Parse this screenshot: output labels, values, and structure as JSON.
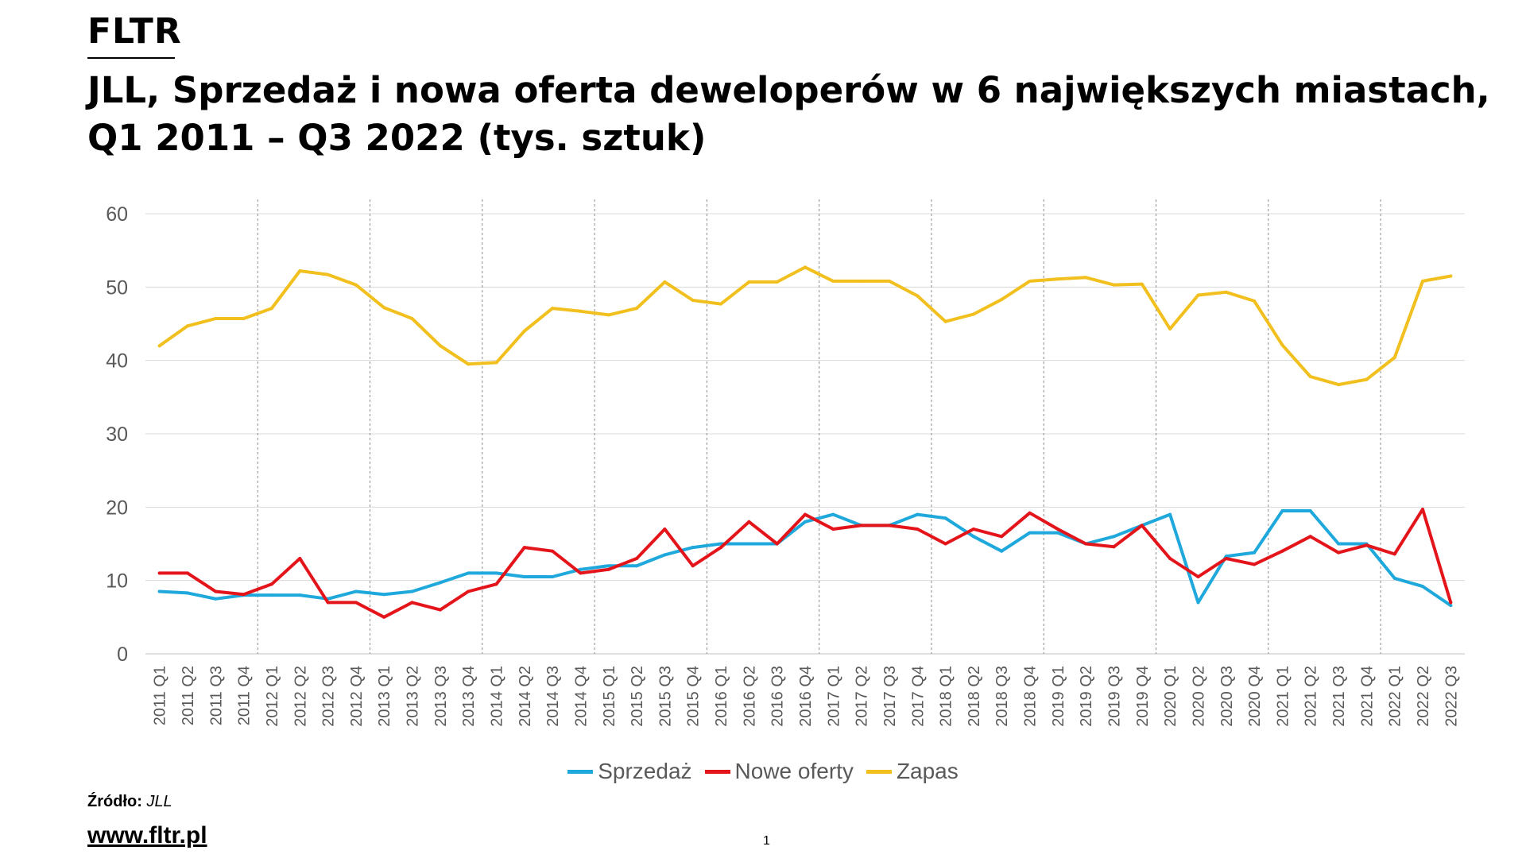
{
  "brand": "FLTR",
  "title_line1": "JLL, Sprzedaż i nowa oferta deweloperów  w 6 największych miastach,",
  "title_line2": "Q1 2011 – Q3 2022 (tys. sztuk)",
  "source_label": "Źródło:",
  "source_value": "JLL",
  "website": "www.fltr.pl",
  "page_number": "1",
  "colors": {
    "sprzedaz": "#1fa8dc",
    "nowe": "#e3151b",
    "zapas": "#f2c01e",
    "grid": "#d9d9d9",
    "tick": "#595959"
  },
  "chart_data": {
    "type": "line",
    "title": "JLL, Sprzedaż i nowa oferta deweloperów w 6 największych miastach, Q1 2011 – Q3 2022 (tys. sztuk)",
    "xlabel": "",
    "ylabel": "",
    "ylim": [
      0,
      60
    ],
    "yticks": [
      "0",
      "10",
      "20",
      "30",
      "40",
      "50",
      "60"
    ],
    "categories": [
      "2011 Q1",
      "2011 Q2",
      "2011 Q3",
      "2011 Q4",
      "2012 Q1",
      "2012 Q2",
      "2012 Q3",
      "2012 Q4",
      "2013 Q1",
      "2013 Q2",
      "2013 Q3",
      "2013 Q4",
      "2014 Q1",
      "2014 Q2",
      "2014 Q3",
      "2014 Q4",
      "2015 Q1",
      "2015 Q2",
      "2015 Q3",
      "2015 Q4",
      "2016 Q1",
      "2016 Q2",
      "2016 Q3",
      "2016 Q4",
      "2017 Q1",
      "2017 Q2",
      "2017 Q3",
      "2017 Q4",
      "2018 Q1",
      "2018 Q2",
      "2018 Q3",
      "2018 Q4",
      "2019 Q1",
      "2019 Q2",
      "2019 Q3",
      "2019 Q4",
      "2020 Q1",
      "2020 Q2",
      "2020 Q3",
      "2020 Q4",
      "2021 Q1",
      "2021 Q2",
      "2021 Q3",
      "2021 Q4",
      "2022 Q1",
      "2022 Q2",
      "2022 Q3"
    ],
    "series": [
      {
        "name": "Sprzedaż",
        "key": "sprzedaz",
        "values": [
          8.5,
          8.3,
          7.5,
          8.0,
          8.0,
          8.0,
          7.5,
          8.5,
          8.1,
          8.5,
          9.7,
          11.0,
          11.0,
          10.5,
          10.5,
          11.5,
          12.0,
          12.0,
          13.5,
          14.5,
          15.0,
          15.0,
          15.0,
          18.0,
          19.0,
          17.5,
          17.5,
          19.0,
          18.5,
          16.0,
          14.0,
          16.5,
          16.5,
          15.0,
          16.0,
          17.5,
          19.0,
          7.0,
          13.3,
          13.8,
          19.5,
          19.5,
          15.0,
          15.0,
          10.3,
          9.2,
          6.6
        ]
      },
      {
        "name": "Nowe oferty",
        "key": "nowe",
        "values": [
          11.0,
          11.0,
          8.5,
          8.1,
          9.5,
          13.0,
          7.0,
          7.0,
          5.0,
          7.0,
          6.0,
          8.5,
          9.5,
          14.5,
          14.0,
          11.0,
          11.5,
          13.0,
          17.0,
          12.0,
          14.5,
          18.0,
          15.0,
          19.0,
          17.0,
          17.5,
          17.5,
          17.0,
          15.0,
          17.0,
          16.0,
          19.2,
          17.0,
          15.0,
          14.6,
          17.5,
          13.0,
          10.5,
          13.0,
          12.2,
          14.0,
          16.0,
          13.8,
          14.8,
          13.6,
          19.7,
          7.0
        ]
      },
      {
        "name": "Zapas",
        "key": "zapas",
        "values": [
          42.0,
          44.7,
          45.7,
          45.7,
          47.1,
          52.2,
          51.7,
          50.3,
          47.2,
          45.7,
          42.0,
          39.5,
          39.7,
          44.0,
          47.1,
          46.7,
          46.2,
          47.1,
          50.7,
          48.2,
          47.7,
          50.7,
          50.7,
          52.7,
          50.8,
          50.8,
          50.8,
          48.8,
          45.3,
          46.3,
          48.3,
          50.8,
          51.1,
          51.3,
          50.3,
          50.4,
          44.3,
          48.9,
          49.3,
          48.1,
          42.1,
          37.8,
          36.7,
          37.4,
          40.4,
          50.8,
          51.5
        ]
      }
    ],
    "legend_position": "bottom-center",
    "grid": true
  }
}
